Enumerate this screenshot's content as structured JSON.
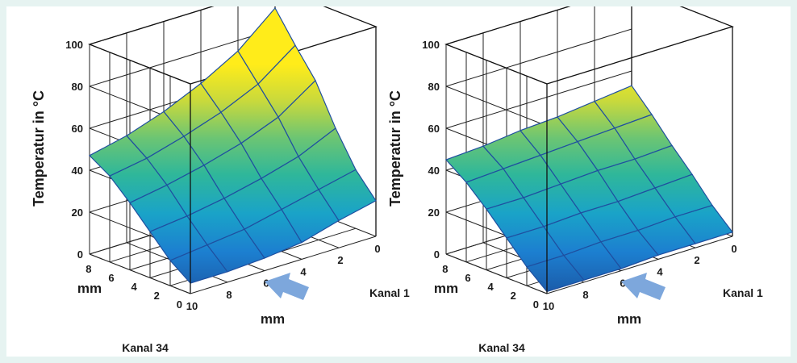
{
  "chart_data": [
    {
      "type": "surface",
      "ylabel": "Temperatur in °C",
      "zlim": [
        0,
        100
      ],
      "z_ticks": [
        "0",
        "20",
        "40",
        "60",
        "80",
        "100"
      ],
      "depth_label": "mm",
      "depth_ticks": [
        "0",
        "2",
        "4",
        "6",
        "8"
      ],
      "width_label": "mm",
      "width_ticks": [
        "10",
        "8",
        "6",
        "4",
        "2",
        "0"
      ],
      "width_start_label": "Kanal 1",
      "width_end_label": "Kanal 34",
      "surface_values": [
        [
          5,
          5,
          6,
          8,
          13,
          17
        ],
        [
          12,
          14,
          16,
          20,
          24,
          28
        ],
        [
          22,
          24,
          27,
          31,
          36,
          44
        ],
        [
          32,
          35,
          39,
          44,
          51,
          63
        ],
        [
          41,
          44,
          49,
          55,
          63,
          76
        ],
        [
          47,
          51,
          57,
          65,
          75,
          90
        ]
      ]
    },
    {
      "type": "surface",
      "ylabel": "Temperatur in °C",
      "zlim": [
        0,
        100
      ],
      "z_ticks": [
        "0",
        "20",
        "40",
        "60",
        "80",
        "100"
      ],
      "depth_label": "mm",
      "depth_ticks": [
        "0",
        "2",
        "4",
        "6",
        "8"
      ],
      "width_label": "mm",
      "width_ticks": [
        "10",
        "8",
        "6",
        "4",
        "2",
        "0"
      ],
      "width_start_label": "Kanal 1",
      "width_end_label": "Kanal 34",
      "surface_values": [
        [
          1,
          1,
          1,
          2,
          2,
          2
        ],
        [
          9,
          9,
          10,
          10,
          11,
          11
        ],
        [
          19,
          19,
          20,
          20,
          21,
          22
        ],
        [
          29,
          29,
          30,
          31,
          31,
          32
        ],
        [
          38,
          39,
          40,
          41,
          42,
          43
        ],
        [
          45,
          46,
          48,
          49,
          51,
          53
        ]
      ]
    }
  ]
}
